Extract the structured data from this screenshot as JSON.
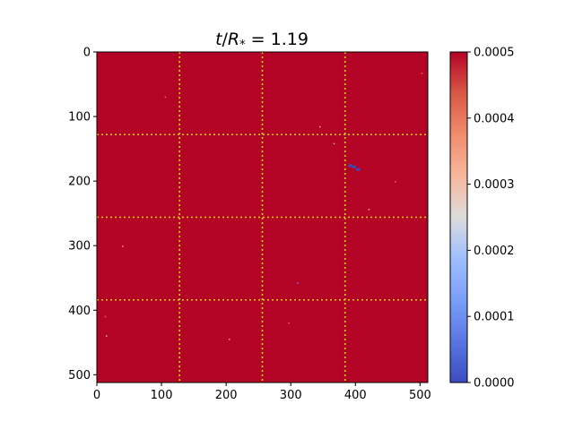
{
  "chart_data": {
    "type": "heatmap",
    "title": "t/R* = 1.19",
    "title_parts": {
      "var": "t",
      "sep": "/",
      "sym": "R",
      "sub": "*",
      "rest": " = 1.19"
    },
    "xlabel": "",
    "ylabel": "",
    "xlim": [
      0,
      512
    ],
    "ylim": [
      512,
      0
    ],
    "x_ticks": [
      0,
      100,
      200,
      300,
      400,
      500
    ],
    "y_ticks": [
      0,
      100,
      200,
      300,
      400,
      500
    ],
    "colormap": "coolwarm",
    "background_value": 0.0005,
    "colorbar": {
      "range": [
        0.0,
        0.0005
      ],
      "ticks": [
        "0.0000",
        "0.0001",
        "0.0002",
        "0.0003",
        "0.0004",
        "0.0005"
      ]
    },
    "grid_lines": {
      "x": [
        128,
        256,
        384
      ],
      "y": [
        128,
        256,
        384
      ],
      "color": "#ffd700",
      "style": "dotted"
    },
    "low_value_regions": [
      {
        "x": 392,
        "y": 176,
        "value": 0.0
      },
      {
        "x": 398,
        "y": 178,
        "value": 0.0
      },
      {
        "x": 404,
        "y": 182,
        "value": 0.0
      },
      {
        "x": 311,
        "y": 358,
        "value": 0.0001
      },
      {
        "x": 367,
        "y": 142,
        "value": 0.0002
      },
      {
        "x": 345,
        "y": 116,
        "value": 0.0003
      },
      {
        "x": 40,
        "y": 301,
        "value": 0.0003
      },
      {
        "x": 15,
        "y": 440,
        "value": 0.0003
      },
      {
        "x": 205,
        "y": 445,
        "value": 0.0003
      },
      {
        "x": 421,
        "y": 244,
        "value": 0.0003
      },
      {
        "x": 106,
        "y": 70,
        "value": 0.0004
      },
      {
        "x": 297,
        "y": 420,
        "value": 0.0004
      },
      {
        "x": 13,
        "y": 410,
        "value": 0.0004
      },
      {
        "x": 462,
        "y": 201,
        "value": 0.0004
      },
      {
        "x": 503,
        "y": 33,
        "value": 0.0004
      }
    ],
    "colors": {
      "high": "#b40426",
      "low": "#3b4cc0",
      "grid": "#ffd700"
    }
  }
}
